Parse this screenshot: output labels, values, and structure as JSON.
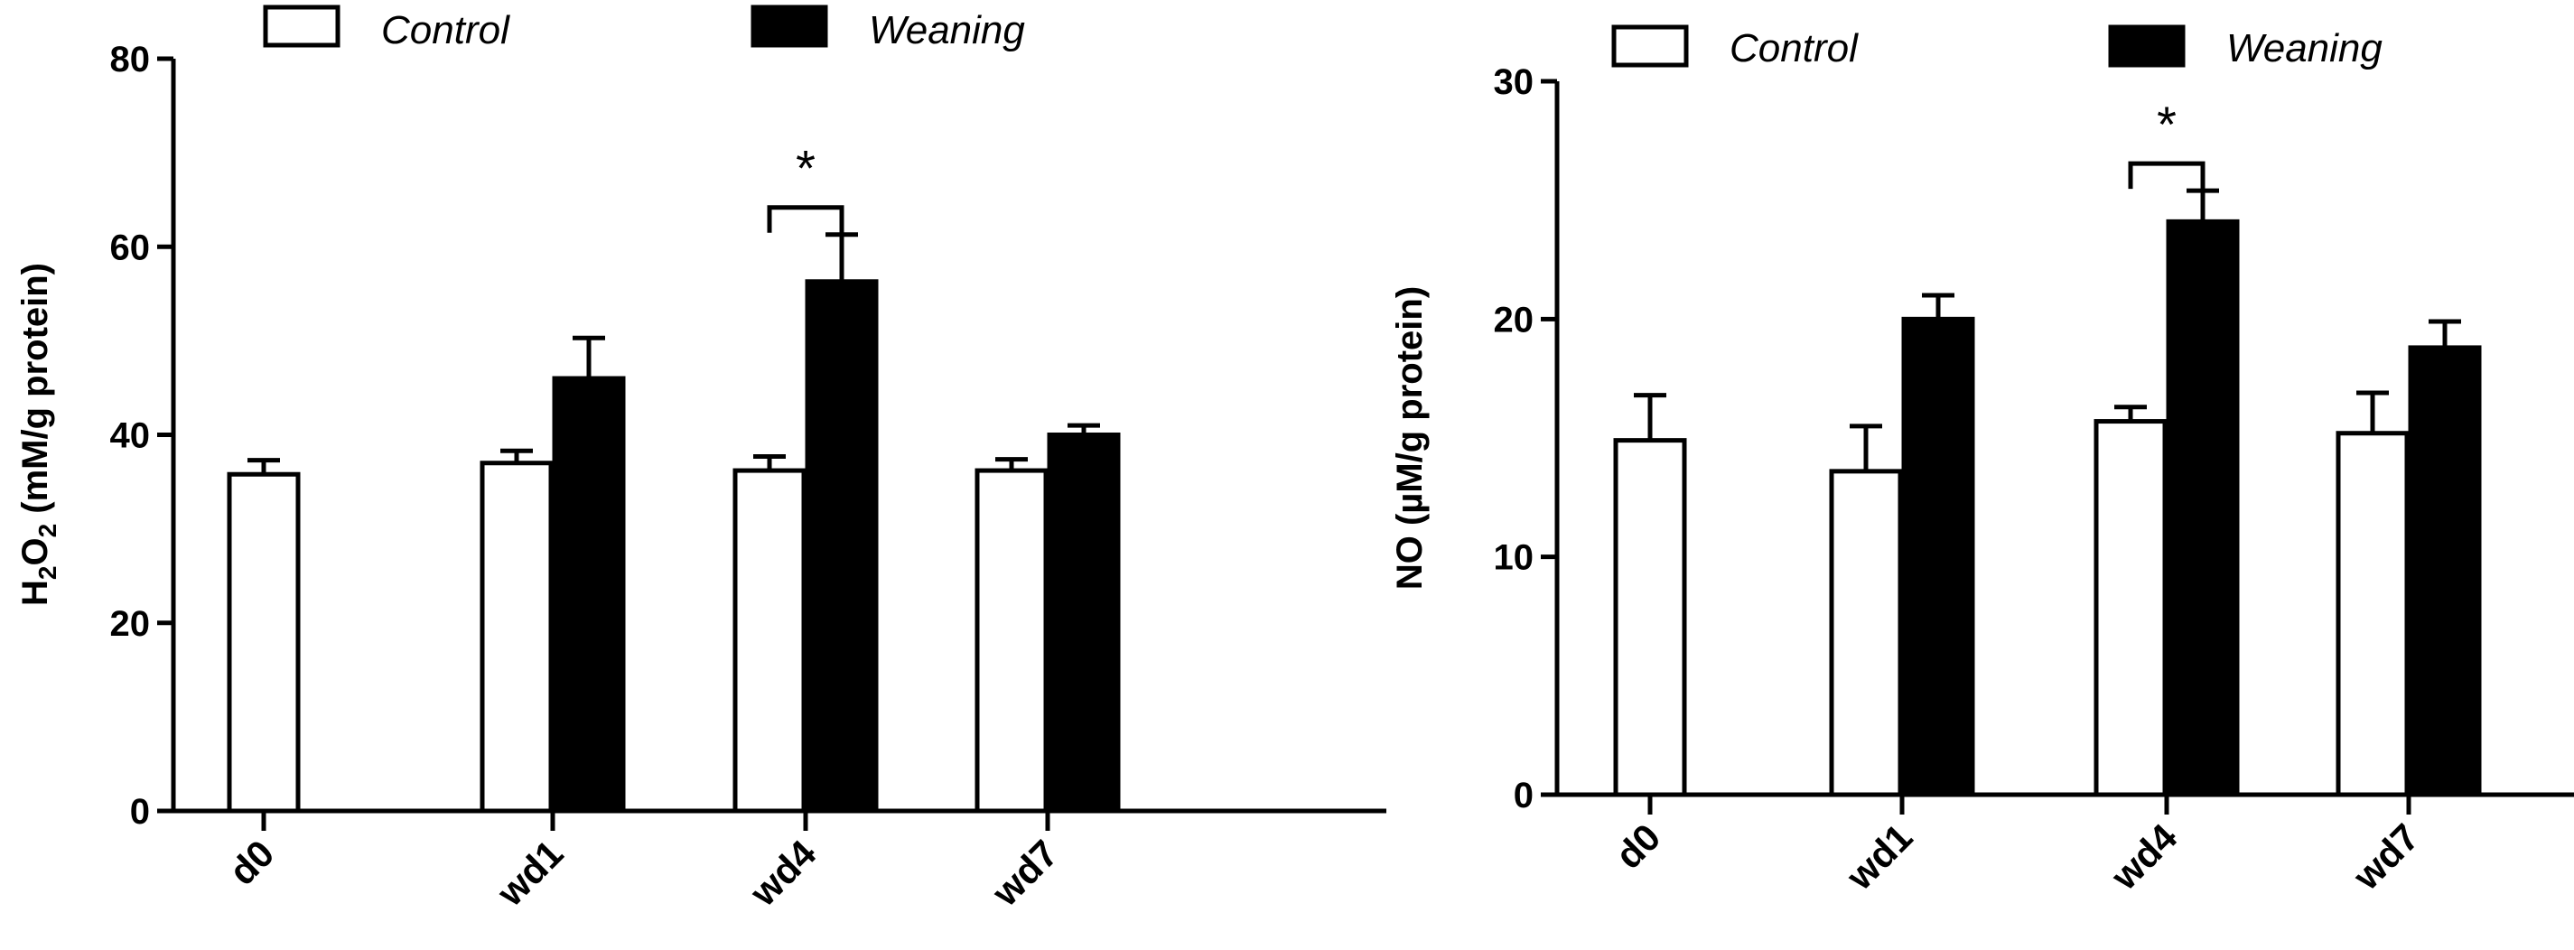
{
  "chart_data": [
    {
      "type": "bar",
      "categories": [
        "d0",
        "wd1",
        "wd4",
        "wd7"
      ],
      "ylim": [
        0,
        80
      ],
      "yticks": [
        0,
        20,
        40,
        60,
        80
      ],
      "ylabel": {
        "main": "H",
        "sub1": "2",
        "mid": "O",
        "sub2": "2",
        "rest": " (mM/g protein)"
      },
      "legend": [
        "Control",
        "Weaning"
      ],
      "series": [
        {
          "name": "Control",
          "color": "#ffffff",
          "values": [
            35.8,
            37.0,
            36.2,
            36.2
          ],
          "errors": [
            1.5,
            1.3,
            1.5,
            1.2
          ]
        },
        {
          "name": "Weaning",
          "color": "#000000",
          "values": [
            null,
            46.0,
            56.3,
            40.0
          ],
          "errors": [
            null,
            4.3,
            5.0,
            1.0
          ]
        }
      ],
      "significance": {
        "category": "wd4",
        "label": "*"
      }
    },
    {
      "type": "bar",
      "categories": [
        "d0",
        "wd1",
        "wd4",
        "wd7"
      ],
      "ylim": [
        0,
        30
      ],
      "yticks": [
        0,
        10,
        20,
        30
      ],
      "ylabel": {
        "main": "NO (µM/g protein)"
      },
      "legend": [
        "Control",
        "Weaning"
      ],
      "series": [
        {
          "name": "Control",
          "color": "#ffffff",
          "values": [
            14.9,
            13.6,
            15.7,
            15.2
          ],
          "errors": [
            1.9,
            1.9,
            0.6,
            1.7
          ]
        },
        {
          "name": "Weaning",
          "color": "#000000",
          "values": [
            null,
            20.0,
            24.1,
            18.8
          ],
          "errors": [
            null,
            1.0,
            1.3,
            1.1
          ]
        }
      ],
      "significance": {
        "category": "wd4",
        "label": "*"
      }
    }
  ]
}
